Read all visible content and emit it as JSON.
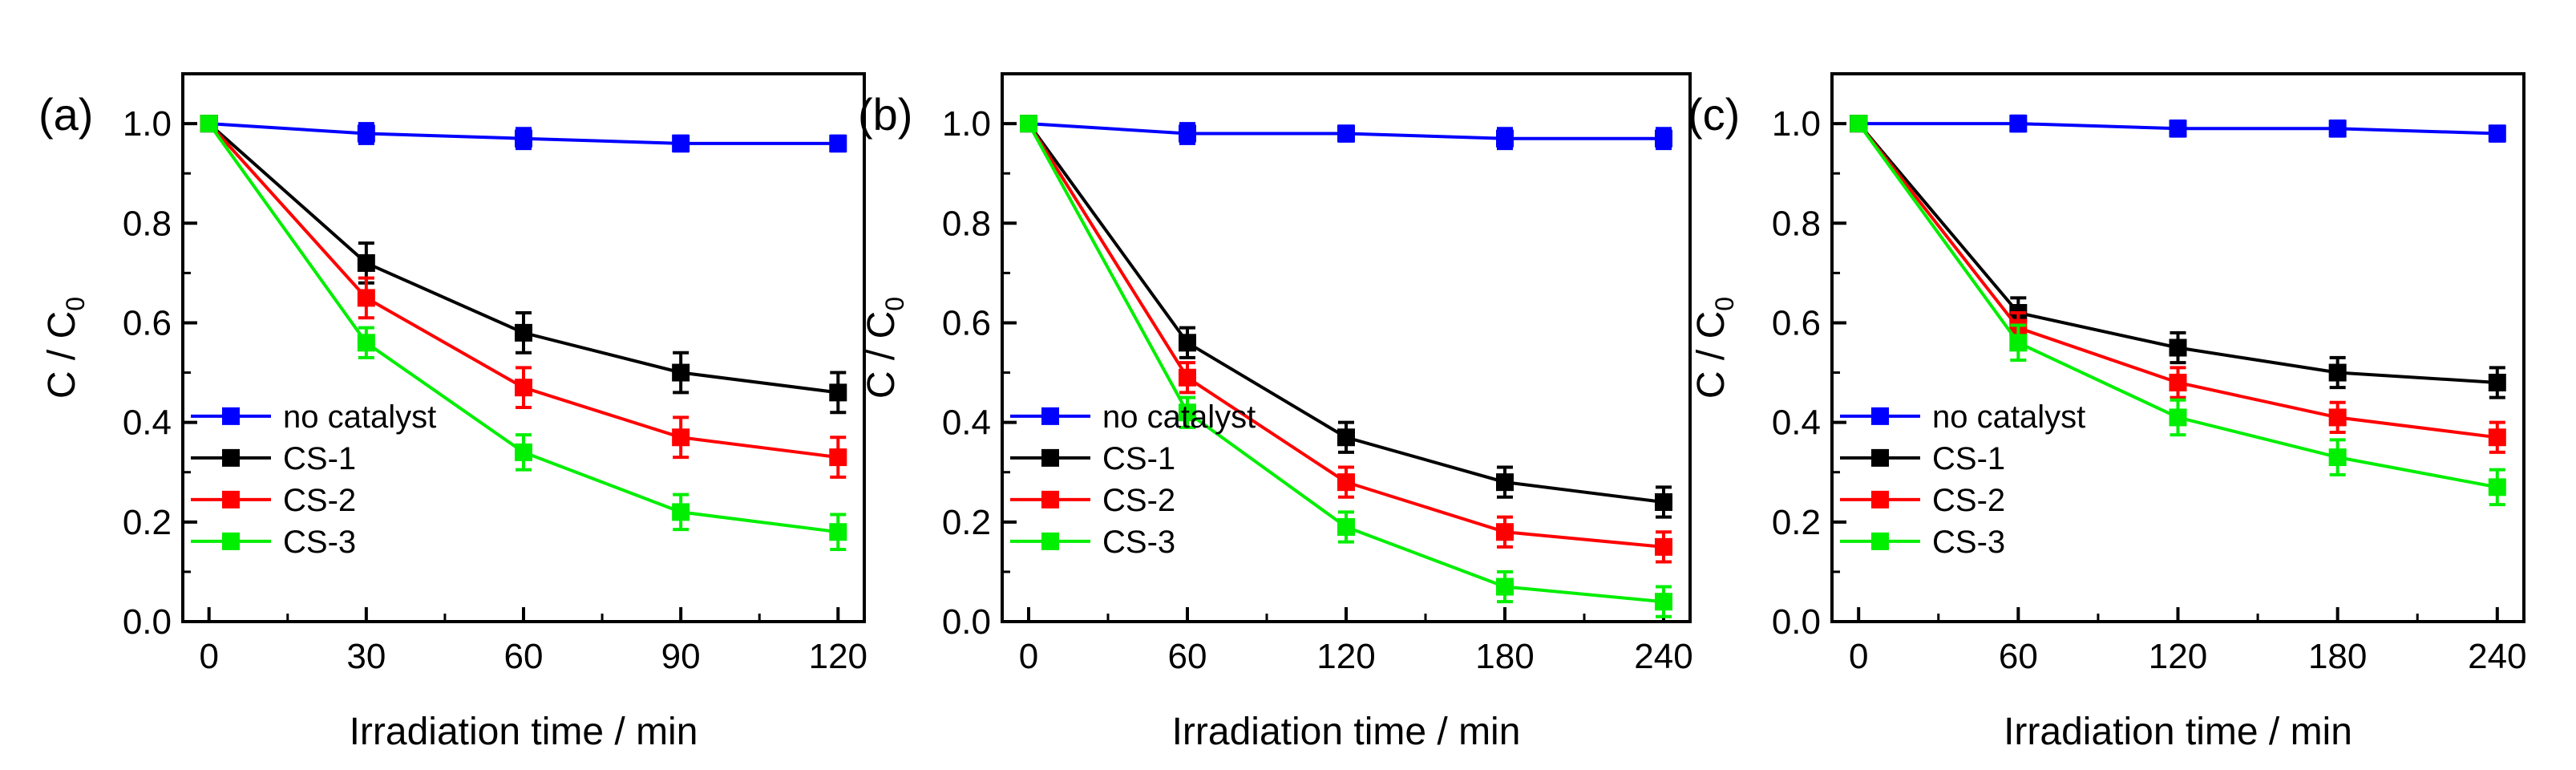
{
  "colors": {
    "no_catalyst": "#0000ff",
    "CS-1": "#000000",
    "CS-2": "#ff0000",
    "CS-3": "#00ee00"
  },
  "chart_data": [
    {
      "type": "line",
      "panel_label": "(a)",
      "xlabel": "Irradiation time / min",
      "ylabel": "C / C",
      "ylabel_sub": "0",
      "xlim": [
        -5,
        125
      ],
      "ylim": [
        0.0,
        1.1
      ],
      "xticks": [
        0,
        30,
        60,
        90,
        120
      ],
      "yticks": [
        0.0,
        0.2,
        0.4,
        0.6,
        0.8,
        1.0
      ],
      "x": [
        0,
        30,
        60,
        90,
        120
      ],
      "legend_position": "lower-left",
      "series": [
        {
          "name": "no catalyst",
          "color": "#0000ff",
          "values": [
            1.0,
            0.98,
            0.97,
            0.96,
            0.96
          ],
          "errors": [
            0,
            0.02,
            0.02,
            0.015,
            0.015
          ]
        },
        {
          "name": "CS-1",
          "color": "#000000",
          "values": [
            1.0,
            0.72,
            0.58,
            0.5,
            0.46
          ],
          "errors": [
            0,
            0.04,
            0.04,
            0.04,
            0.04
          ]
        },
        {
          "name": "CS-2",
          "color": "#ff0000",
          "values": [
            1.0,
            0.65,
            0.47,
            0.37,
            0.33
          ],
          "errors": [
            0,
            0.04,
            0.04,
            0.04,
            0.04
          ]
        },
        {
          "name": "CS-3",
          "color": "#00ee00",
          "values": [
            1.0,
            0.56,
            0.34,
            0.22,
            0.18
          ],
          "errors": [
            0,
            0.03,
            0.035,
            0.035,
            0.035
          ]
        }
      ]
    },
    {
      "type": "line",
      "panel_label": "(b)",
      "xlabel": "Irradiation time / min",
      "ylabel": "C / C",
      "ylabel_sub": "0",
      "xlim": [
        -10,
        250
      ],
      "ylim": [
        0.0,
        1.1
      ],
      "xticks": [
        0,
        60,
        120,
        180,
        240
      ],
      "yticks": [
        0.0,
        0.2,
        0.4,
        0.6,
        0.8,
        1.0
      ],
      "x": [
        0,
        60,
        120,
        180,
        240
      ],
      "legend_position": "lower-left",
      "series": [
        {
          "name": "no catalyst",
          "color": "#0000ff",
          "values": [
            1.0,
            0.98,
            0.98,
            0.97,
            0.97
          ],
          "errors": [
            0,
            0.02,
            0.015,
            0.02,
            0.02
          ]
        },
        {
          "name": "CS-1",
          "color": "#000000",
          "values": [
            1.0,
            0.56,
            0.37,
            0.28,
            0.24
          ],
          "errors": [
            0,
            0.03,
            0.03,
            0.03,
            0.03
          ]
        },
        {
          "name": "CS-2",
          "color": "#ff0000",
          "values": [
            1.0,
            0.49,
            0.28,
            0.18,
            0.15
          ],
          "errors": [
            0,
            0.03,
            0.03,
            0.03,
            0.03
          ]
        },
        {
          "name": "CS-3",
          "color": "#00ee00",
          "values": [
            1.0,
            0.42,
            0.19,
            0.07,
            0.04
          ],
          "errors": [
            0,
            0.03,
            0.03,
            0.03,
            0.03
          ]
        }
      ]
    },
    {
      "type": "line",
      "panel_label": "(c)",
      "xlabel": "Irradiation time / min",
      "ylabel": "C / C",
      "ylabel_sub": "0",
      "xlim": [
        -10,
        250
      ],
      "ylim": [
        0.0,
        1.1
      ],
      "xticks": [
        0,
        60,
        120,
        180,
        240
      ],
      "yticks": [
        0.0,
        0.2,
        0.4,
        0.6,
        0.8,
        1.0
      ],
      "x": [
        0,
        60,
        120,
        180,
        240
      ],
      "legend_position": "lower-left",
      "series": [
        {
          "name": "no catalyst",
          "color": "#0000ff",
          "values": [
            1.0,
            1.0,
            0.99,
            0.99,
            0.98
          ],
          "errors": [
            0,
            0.015,
            0.015,
            0.015,
            0.015
          ]
        },
        {
          "name": "CS-1",
          "color": "#000000",
          "values": [
            1.0,
            0.62,
            0.55,
            0.5,
            0.48
          ],
          "errors": [
            0,
            0.03,
            0.03,
            0.03,
            0.03
          ]
        },
        {
          "name": "CS-2",
          "color": "#ff0000",
          "values": [
            1.0,
            0.59,
            0.48,
            0.41,
            0.37
          ],
          "errors": [
            0,
            0.03,
            0.03,
            0.03,
            0.03
          ]
        },
        {
          "name": "CS-3",
          "color": "#00ee00",
          "values": [
            1.0,
            0.56,
            0.41,
            0.33,
            0.27
          ],
          "errors": [
            0,
            0.035,
            0.035,
            0.035,
            0.035
          ]
        }
      ]
    }
  ]
}
